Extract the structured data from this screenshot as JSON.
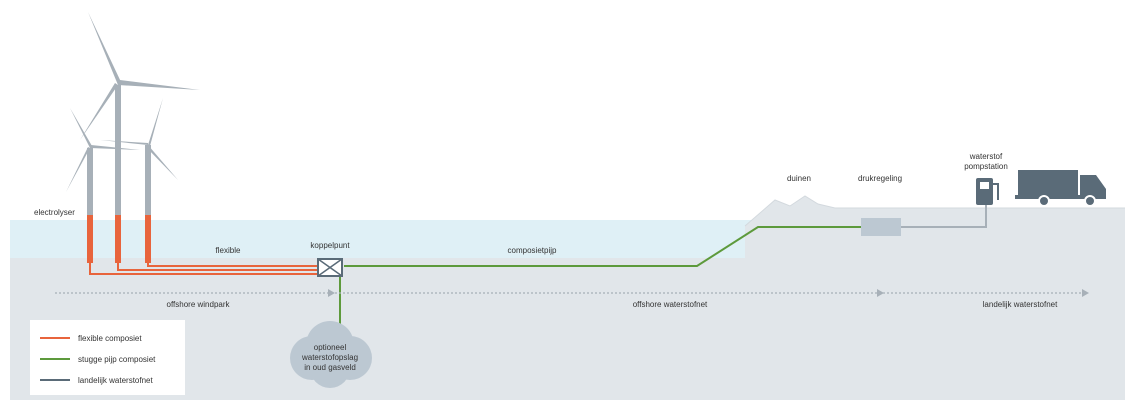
{
  "labels": {
    "electrolyser": "electrolyser",
    "flexible": "flexible",
    "koppelpunt": "koppelpunt",
    "composietpijp": "composietpijp",
    "duinen": "duinen",
    "drukregeling": "drukregeling",
    "pompstation": [
      "waterstof",
      "pompstation"
    ]
  },
  "zones": [
    "offshore windpark",
    "offshore waterstofnet",
    "landelijk waterstofnet"
  ],
  "storage": [
    "optioneel",
    "waterstofopslag",
    "in oud gasveld"
  ],
  "legend": [
    {
      "label": "flexible composiet",
      "color": "#e8643c"
    },
    {
      "label": "stugge pijp composiet",
      "color": "#5d9a3c"
    },
    {
      "label": "landelijk waterstofnet",
      "color": "#5a6b78"
    }
  ]
}
